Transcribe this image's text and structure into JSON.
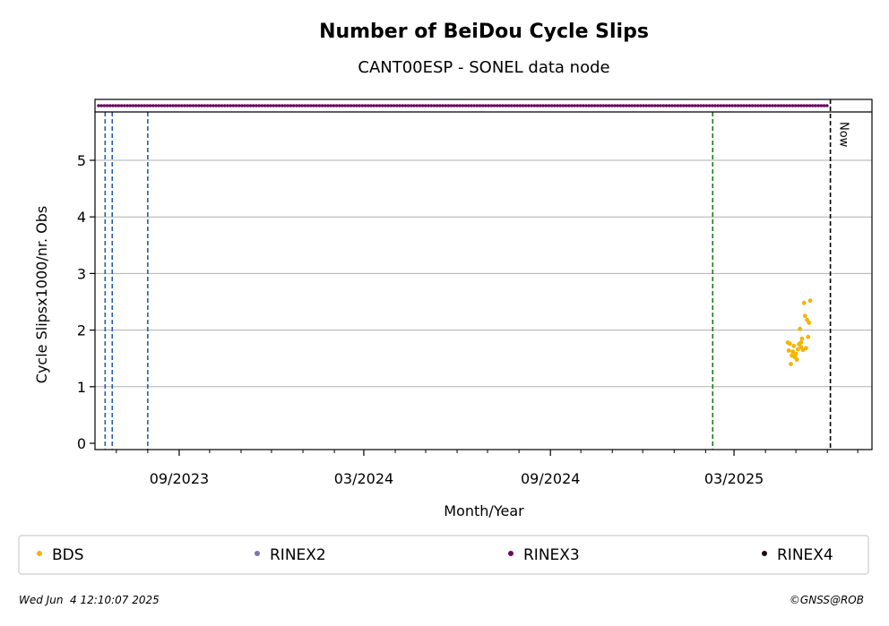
{
  "chart_data": {
    "type": "scatter",
    "title": "Number of BeiDou Cycle Slips",
    "subtitle": "CANT00ESP - SONEL data node",
    "xlabel": "Month/Year",
    "ylabel": "Cycle Slipsx1000/nr. Obs",
    "xlim": [
      "2023-06-10",
      "2025-07-15"
    ],
    "ylim": [
      -0.1,
      5.9
    ],
    "x_ticks": [
      "2023-09-01",
      "2024-03-01",
      "2024-09-01",
      "2025-03-01"
    ],
    "x_tick_labels": [
      "09/2023",
      "03/2024",
      "09/2024",
      "03/2025"
    ],
    "x_minor_ticks": [
      "2023-07-01",
      "2023-08-01",
      "2023-10-01",
      "2023-11-01",
      "2023-12-01",
      "2024-01-01",
      "2024-02-01",
      "2024-04-01",
      "2024-05-01",
      "2024-06-01",
      "2024-07-01",
      "2024-08-01",
      "2024-10-01",
      "2024-11-01",
      "2024-12-01",
      "2025-01-01",
      "2025-02-01",
      "2025-04-01",
      "2025-05-01",
      "2025-06-01",
      "2025-07-01"
    ],
    "y_ticks": [
      0,
      1,
      2,
      3,
      4,
      5
    ],
    "y_tick_labels": [
      "0",
      "1",
      "2",
      "3",
      "4",
      "5"
    ],
    "grid": "y",
    "series": [
      {
        "name": "BDS",
        "color": "#f5b400",
        "points": [
          {
            "x": "2025-04-23",
            "y": 1.78
          },
          {
            "x": "2025-04-24",
            "y": 1.64
          },
          {
            "x": "2025-04-25",
            "y": 1.76
          },
          {
            "x": "2025-04-26",
            "y": 1.4
          },
          {
            "x": "2025-04-27",
            "y": 1.55
          },
          {
            "x": "2025-04-28",
            "y": 1.62
          },
          {
            "x": "2025-04-29",
            "y": 1.72
          },
          {
            "x": "2025-04-30",
            "y": 1.52
          },
          {
            "x": "2025-05-01",
            "y": 1.58
          },
          {
            "x": "2025-05-02",
            "y": 1.48
          },
          {
            "x": "2025-05-03",
            "y": 1.66
          },
          {
            "x": "2025-05-04",
            "y": 1.75
          },
          {
            "x": "2025-05-05",
            "y": 2.02
          },
          {
            "x": "2025-05-06",
            "y": 1.7
          },
          {
            "x": "2025-05-07",
            "y": 1.85
          },
          {
            "x": "2025-05-08",
            "y": 1.65
          },
          {
            "x": "2025-05-09",
            "y": 2.48
          },
          {
            "x": "2025-05-10",
            "y": 2.25
          },
          {
            "x": "2025-05-11",
            "y": 1.68
          },
          {
            "x": "2025-05-12",
            "y": 2.18
          },
          {
            "x": "2025-05-13",
            "y": 1.88
          },
          {
            "x": "2025-05-14",
            "y": 2.13
          },
          {
            "x": "2025-05-15",
            "y": 2.52
          },
          {
            "x": "2025-05-06",
            "y": 1.78
          }
        ]
      },
      {
        "name": "RINEX2",
        "color": "#7b72b8",
        "points": []
      },
      {
        "name": "RINEX3",
        "color": "#6a0a5e",
        "band": {
          "start": "2023-06-10",
          "end": "2025-06-01"
        }
      },
      {
        "name": "RINEX4",
        "color": "#1a0a12",
        "points": []
      }
    ],
    "vertical_lines": [
      {
        "x": "2023-06-20",
        "color": "#1f5fa8",
        "style": "dashed"
      },
      {
        "x": "2023-06-27",
        "color": "#1f5fa8",
        "style": "dashed"
      },
      {
        "x": "2023-08-01",
        "color": "#1f5fa8",
        "style": "dashed"
      },
      {
        "x": "2025-02-08",
        "color": "#1a7a1a",
        "style": "dashed"
      },
      {
        "x": "2025-06-04",
        "color": "#000000",
        "style": "dashed",
        "label": "Now"
      }
    ],
    "legend": {
      "placement": "below",
      "entries": [
        "BDS",
        "RINEX2",
        "RINEX3",
        "RINEX4"
      ]
    }
  },
  "footer": {
    "timestamp": "Wed Jun  4 12:10:07 2025",
    "credit": "©GNSS@ROB"
  }
}
